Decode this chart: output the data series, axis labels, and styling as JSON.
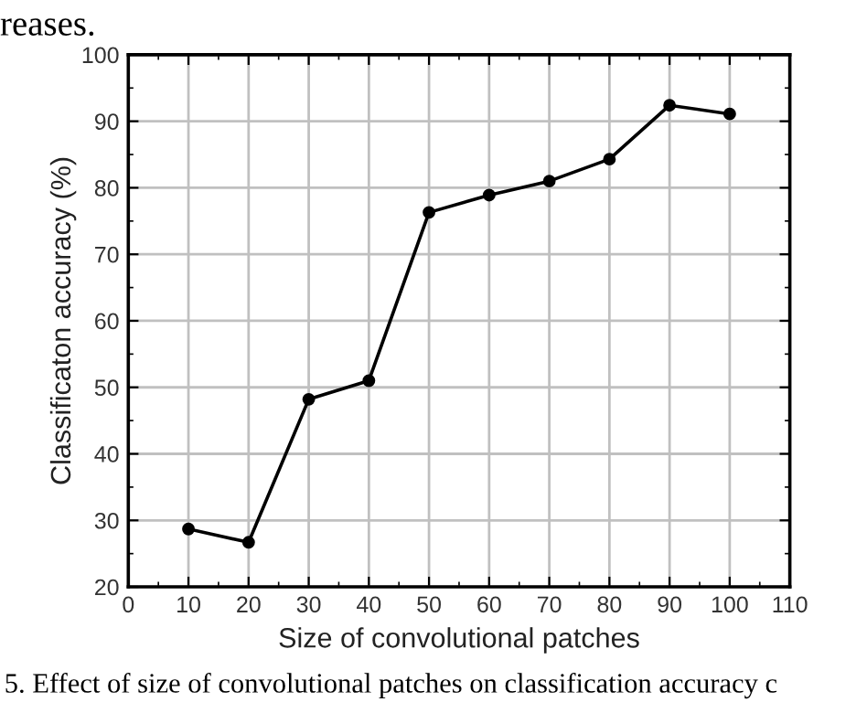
{
  "chart_data": {
    "type": "line",
    "xlabel": "Size of convolutional patches",
    "ylabel": "Classificaton accuracy (%)",
    "x": [
      10,
      20,
      30,
      40,
      50,
      60,
      70,
      80,
      90,
      100
    ],
    "series": [
      {
        "color": "#000000",
        "values": [
          28.7,
          26.7,
          48.2,
          51.0,
          76.3,
          78.9,
          81.0,
          84.3,
          92.4,
          91.1
        ]
      }
    ],
    "xlim": [
      0,
      110
    ],
    "xticks": [
      0,
      10,
      20,
      30,
      40,
      50,
      60,
      70,
      80,
      90,
      100,
      110
    ],
    "ylim": [
      20,
      100
    ],
    "yticks": [
      20,
      30,
      40,
      50,
      60,
      70,
      80,
      90,
      100
    ],
    "grid": true,
    "marker": "circle",
    "line_style": "solid",
    "annotations": [
      "reases.",
      "5. Effect of size of convolutional patches on classification accuracy c"
    ]
  }
}
